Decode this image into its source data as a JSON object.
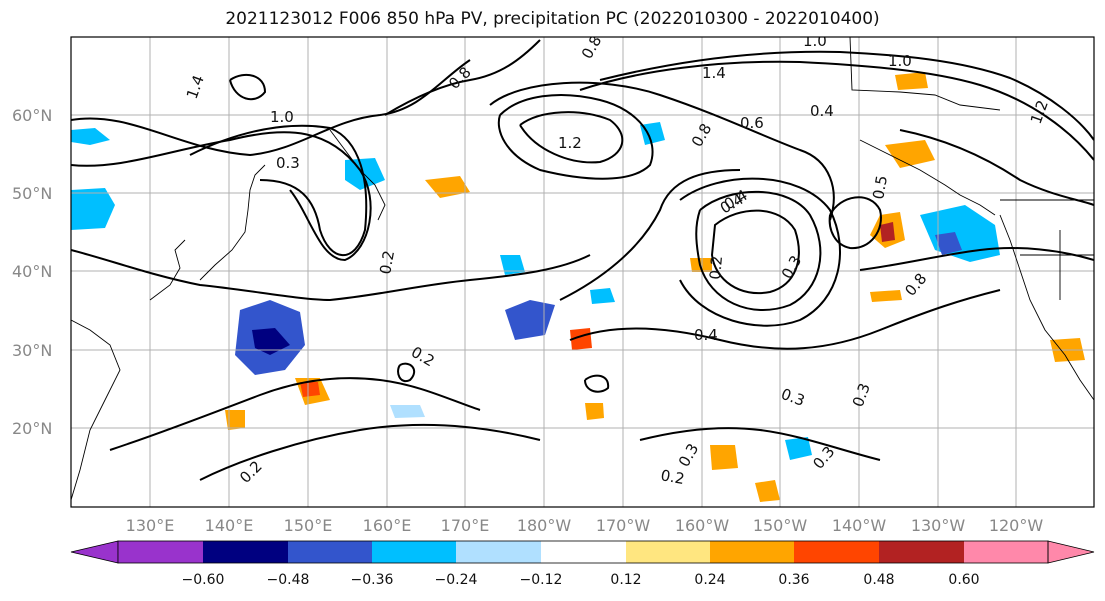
{
  "title": "2021123012 F006 850 hPa PV, precipitation PC (2022010300 - 2022010400)",
  "map": {
    "lat_ticks": [
      "60°N",
      "50°N",
      "40°N",
      "30°N",
      "20°N"
    ],
    "lon_ticks": [
      "130°E",
      "140°E",
      "150°E",
      "160°E",
      "170°E",
      "180°W",
      "170°W",
      "160°W",
      "150°W",
      "140°W",
      "130°W",
      "120°W"
    ],
    "contour_labels": [
      "1.4",
      "1.0",
      "1.2",
      "0.8",
      "0.3",
      "0.2",
      "0.4",
      "0.6",
      "0.5",
      "1.4",
      "1.0",
      "0.4",
      "0.3",
      "0.2",
      "0.3",
      "0.4",
      "0.2",
      "0.2",
      "0.3",
      "0.8",
      "0.2",
      "0.8",
      "1.0",
      "1.2",
      "0.4",
      "0.3",
      "0.3",
      "0.8"
    ]
  },
  "colorbar": {
    "ticks": [
      "−0.60",
      "−0.48",
      "−0.36",
      "−0.24",
      "−0.12",
      "0.12",
      "0.24",
      "0.36",
      "0.48",
      "0.60"
    ],
    "colors": [
      "#9933cc",
      "#000080",
      "#3355cc",
      "#00bfff",
      "#b0e0ff",
      "#ffffff",
      "#ffe680",
      "#ffa500",
      "#ff4500",
      "#b22222",
      "#ff88aa"
    ]
  }
}
